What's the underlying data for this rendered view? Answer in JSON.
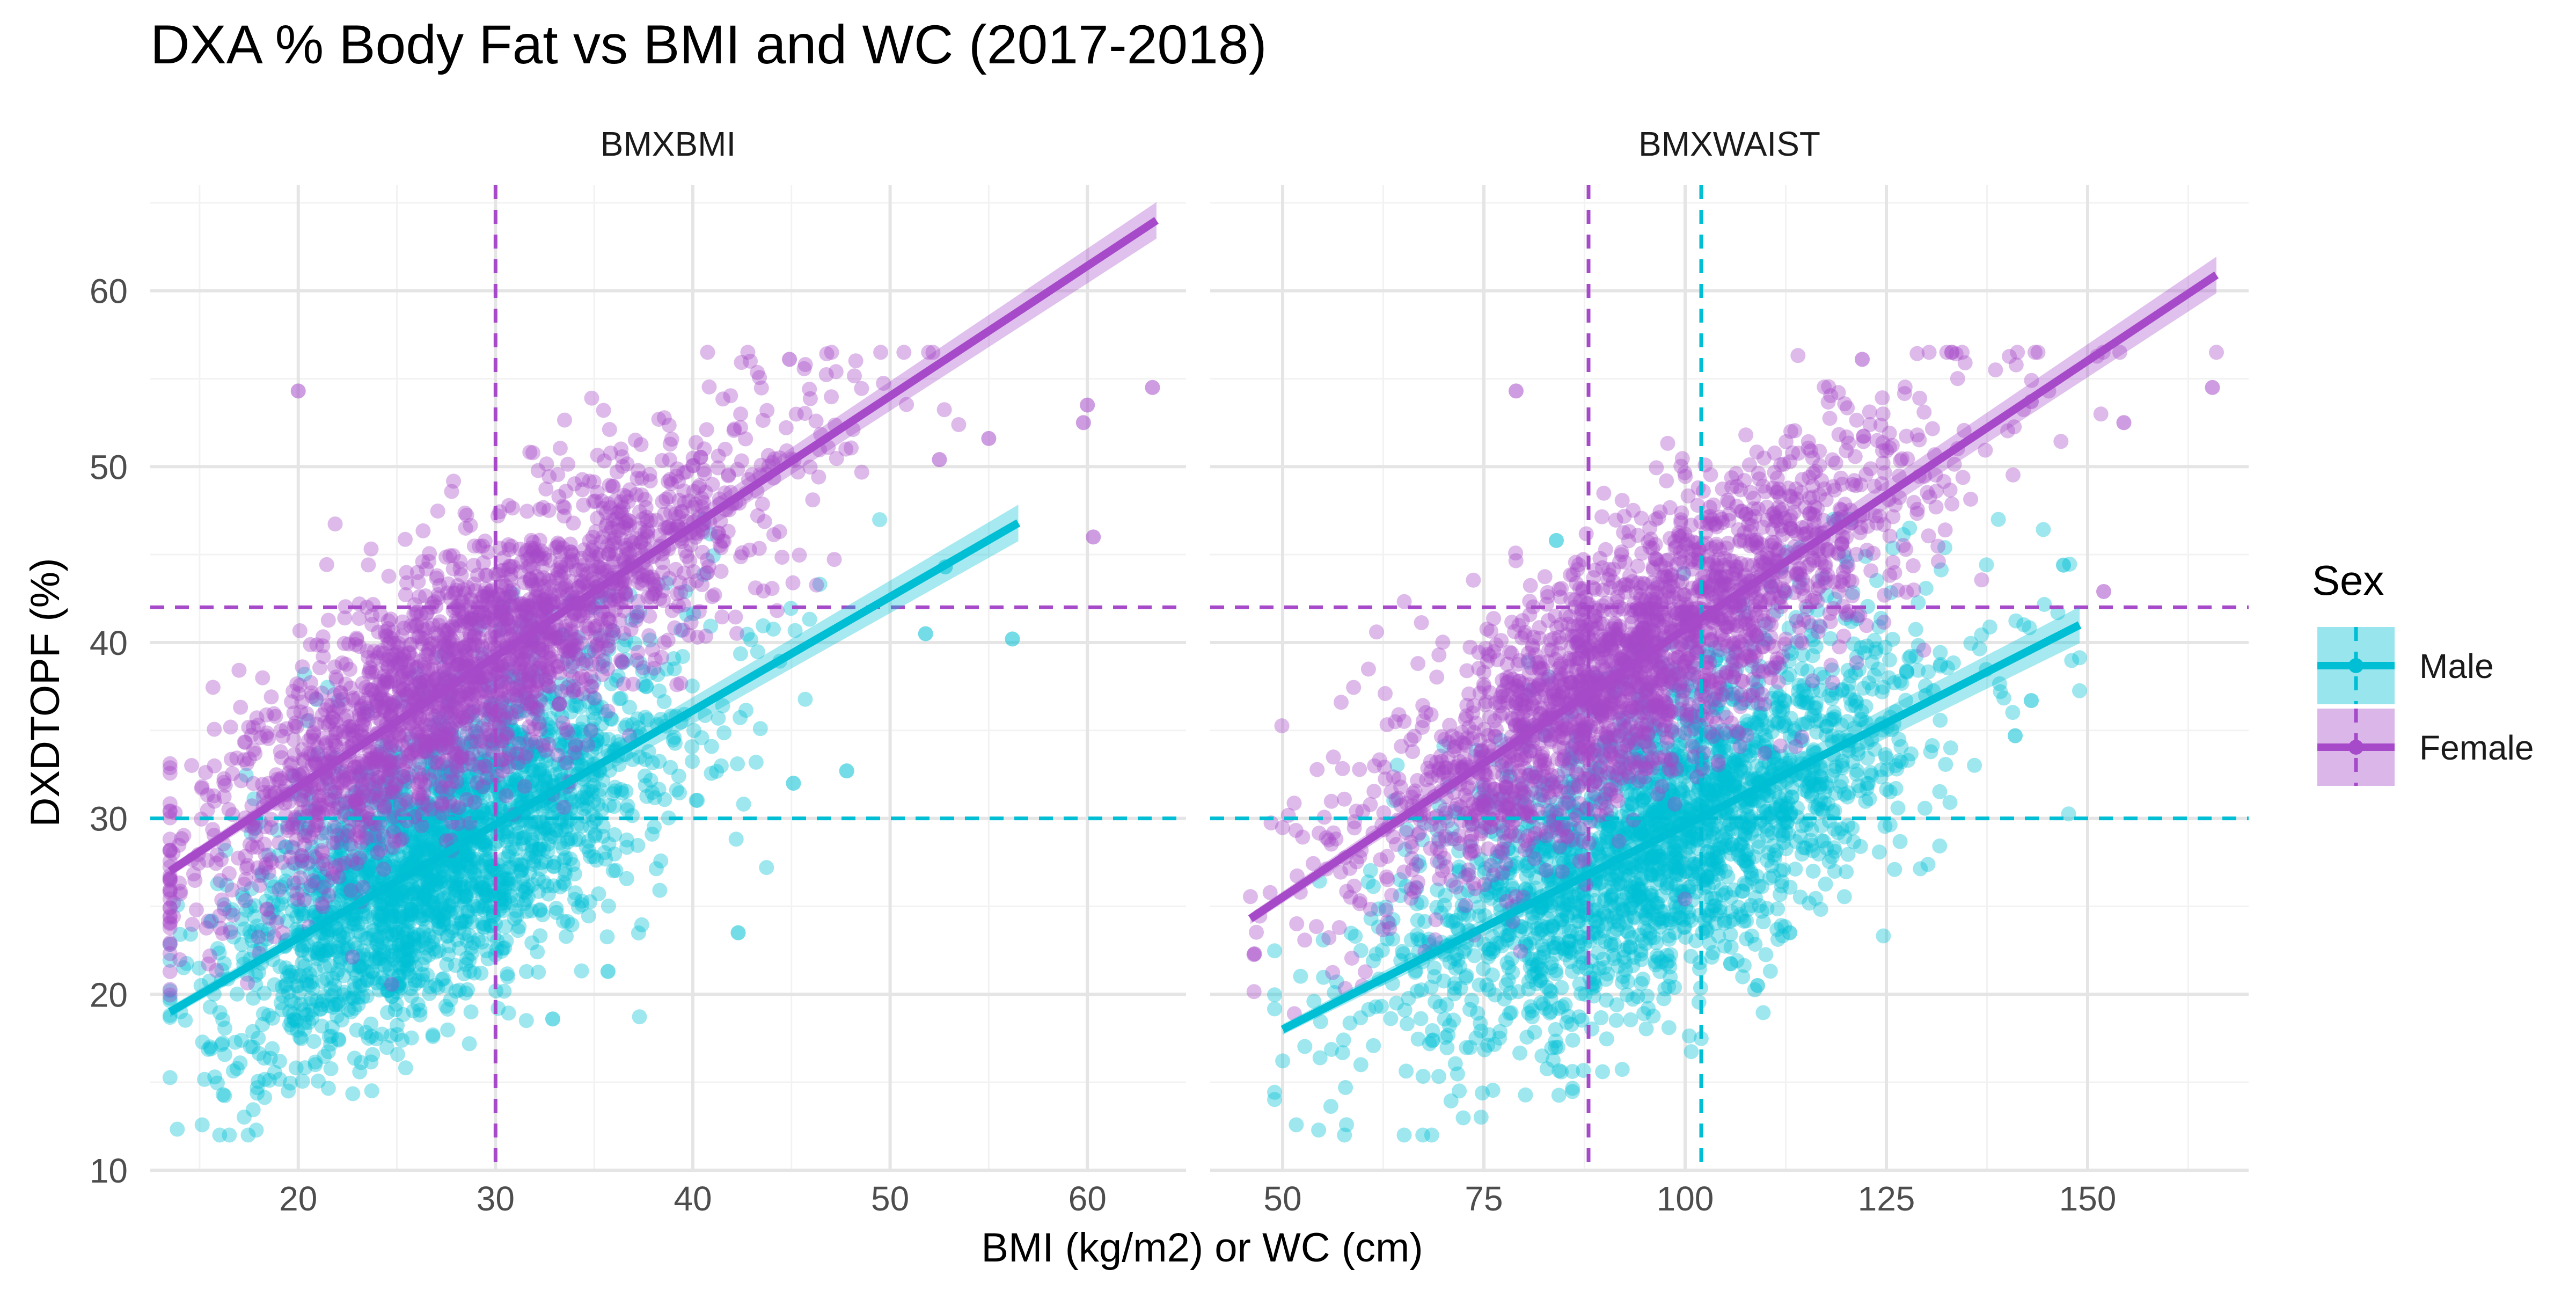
{
  "chart_data": {
    "type": "scatter",
    "title": "DXA % Body Fat vs BMI and WC (2017-2018)",
    "xlabel": "BMI (kg/m2) or WC (cm)",
    "ylabel": "DXDTOPF (%)",
    "ylim": [
      10,
      66
    ],
    "yticks": [
      10,
      20,
      30,
      40,
      50,
      60
    ],
    "legend": {
      "title": "Sex",
      "placement": "right",
      "entries": [
        {
          "name": "Male",
          "color": "#00BFD4"
        },
        {
          "name": "Female",
          "color": "#A64AC9"
        }
      ]
    },
    "colors": {
      "male": "#00BFD4",
      "female": "#A64AC9",
      "grid_major": "#E5E5E5",
      "grid_minor": "#F2F2F2",
      "text": "#4D4D4D"
    },
    "reference_lines": {
      "horizontal": [
        {
          "y": 42,
          "sex": "Female",
          "style": "dashed"
        },
        {
          "y": 30,
          "sex": "Male",
          "style": "dashed"
        }
      ]
    },
    "grid": true,
    "facets": [
      {
        "label": "BMXBMI",
        "xlim": [
          12.5,
          65
        ],
        "xticks": [
          20,
          30,
          40,
          50,
          60
        ],
        "vlines": [
          {
            "x": 30,
            "sex": "Female",
            "style": "dashed"
          }
        ],
        "fits": [
          {
            "sex": "Male",
            "x": [
              13.5,
              56.5
            ],
            "y": [
              19.0,
              46.8
            ]
          },
          {
            "sex": "Female",
            "x": [
              13.5,
              63.5
            ],
            "y": [
              27.0,
              64.0
            ]
          }
        ],
        "clouds": [
          {
            "sex": "Male",
            "n": 2300,
            "x_mean": 27.0,
            "x_sd": 5.2,
            "x_range": [
              13.5,
              56.5
            ],
            "slope": 0.65,
            "intercept": 10.2,
            "resid_sd": 4.3,
            "y_range": [
              12,
              47
            ]
          },
          {
            "sex": "Female",
            "n": 2300,
            "x_mean": 28.5,
            "x_sd": 6.8,
            "x_range": [
              13.5,
              63.5
            ],
            "slope": 0.74,
            "intercept": 17.0,
            "resid_sd": 3.6,
            "y_range": [
              15.5,
              56.5
            ]
          }
        ],
        "outliers": [
          {
            "sex": "Female",
            "x": 20.0,
            "y": 54.3
          },
          {
            "sex": "Female",
            "x": 63.3,
            "y": 54.5
          },
          {
            "sex": "Female",
            "x": 60.3,
            "y": 46.0
          },
          {
            "sex": "Female",
            "x": 59.8,
            "y": 52.5
          },
          {
            "sex": "Female",
            "x": 60.0,
            "y": 53.5
          },
          {
            "sex": "Female",
            "x": 44.9,
            "y": 56.1
          },
          {
            "sex": "Female",
            "x": 55.0,
            "y": 51.6
          },
          {
            "sex": "Female",
            "x": 52.5,
            "y": 50.4
          },
          {
            "sex": "Male",
            "x": 56.2,
            "y": 40.2
          },
          {
            "sex": "Male",
            "x": 51.8,
            "y": 40.5
          },
          {
            "sex": "Male",
            "x": 52.8,
            "y": 44.3
          },
          {
            "sex": "Male",
            "x": 47.8,
            "y": 32.7
          },
          {
            "sex": "Male",
            "x": 45.1,
            "y": 32.0
          },
          {
            "sex": "Male",
            "x": 42.3,
            "y": 23.5
          },
          {
            "sex": "Male",
            "x": 32.9,
            "y": 18.6
          },
          {
            "sex": "Male",
            "x": 35.7,
            "y": 21.3
          }
        ]
      },
      {
        "label": "BMXWAIST",
        "xlim": [
          41,
          170
        ],
        "xticks": [
          50,
          75,
          100,
          125,
          150
        ],
        "vlines": [
          {
            "x": 88,
            "sex": "Female",
            "style": "dashed"
          },
          {
            "x": 102,
            "sex": "Male",
            "style": "dashed"
          }
        ],
        "fits": [
          {
            "sex": "Male",
            "x": [
              50,
              149
            ],
            "y": [
              18.0,
              41.0
            ]
          },
          {
            "sex": "Female",
            "x": [
              46,
              166
            ],
            "y": [
              24.3,
              60.9
            ]
          }
        ],
        "clouds": [
          {
            "sex": "Male",
            "n": 2300,
            "x_mean": 95,
            "x_sd": 16,
            "x_range": [
              49,
              149
            ],
            "slope": 0.232,
            "intercept": 6.4,
            "resid_sd": 4.4,
            "y_range": [
              12,
              47
            ]
          },
          {
            "sex": "Female",
            "n": 2300,
            "x_mean": 92,
            "x_sd": 16,
            "x_range": [
              46,
              166
            ],
            "slope": 0.305,
            "intercept": 10.3,
            "resid_sd": 3.7,
            "y_range": [
              15.5,
              56.5
            ]
          }
        ],
        "outliers": [
          {
            "sex": "Female",
            "x": 165.5,
            "y": 54.5
          },
          {
            "sex": "Female",
            "x": 154.5,
            "y": 52.5
          },
          {
            "sex": "Female",
            "x": 152.0,
            "y": 42.9
          },
          {
            "sex": "Female",
            "x": 143.0,
            "y": 53.7
          },
          {
            "sex": "Female",
            "x": 122.0,
            "y": 56.1
          },
          {
            "sex": "Female",
            "x": 79.0,
            "y": 54.3
          },
          {
            "sex": "Female",
            "x": 46.5,
            "y": 22.3
          },
          {
            "sex": "Male",
            "x": 147.0,
            "y": 44.4
          },
          {
            "sex": "Male",
            "x": 143.0,
            "y": 36.7
          },
          {
            "sex": "Male",
            "x": 141.0,
            "y": 34.7
          },
          {
            "sex": "Male",
            "x": 113.0,
            "y": 23.5
          },
          {
            "sex": "Male",
            "x": 109.0,
            "y": 20.5
          },
          {
            "sex": "Male",
            "x": 84.0,
            "y": 45.8
          }
        ]
      }
    ]
  }
}
